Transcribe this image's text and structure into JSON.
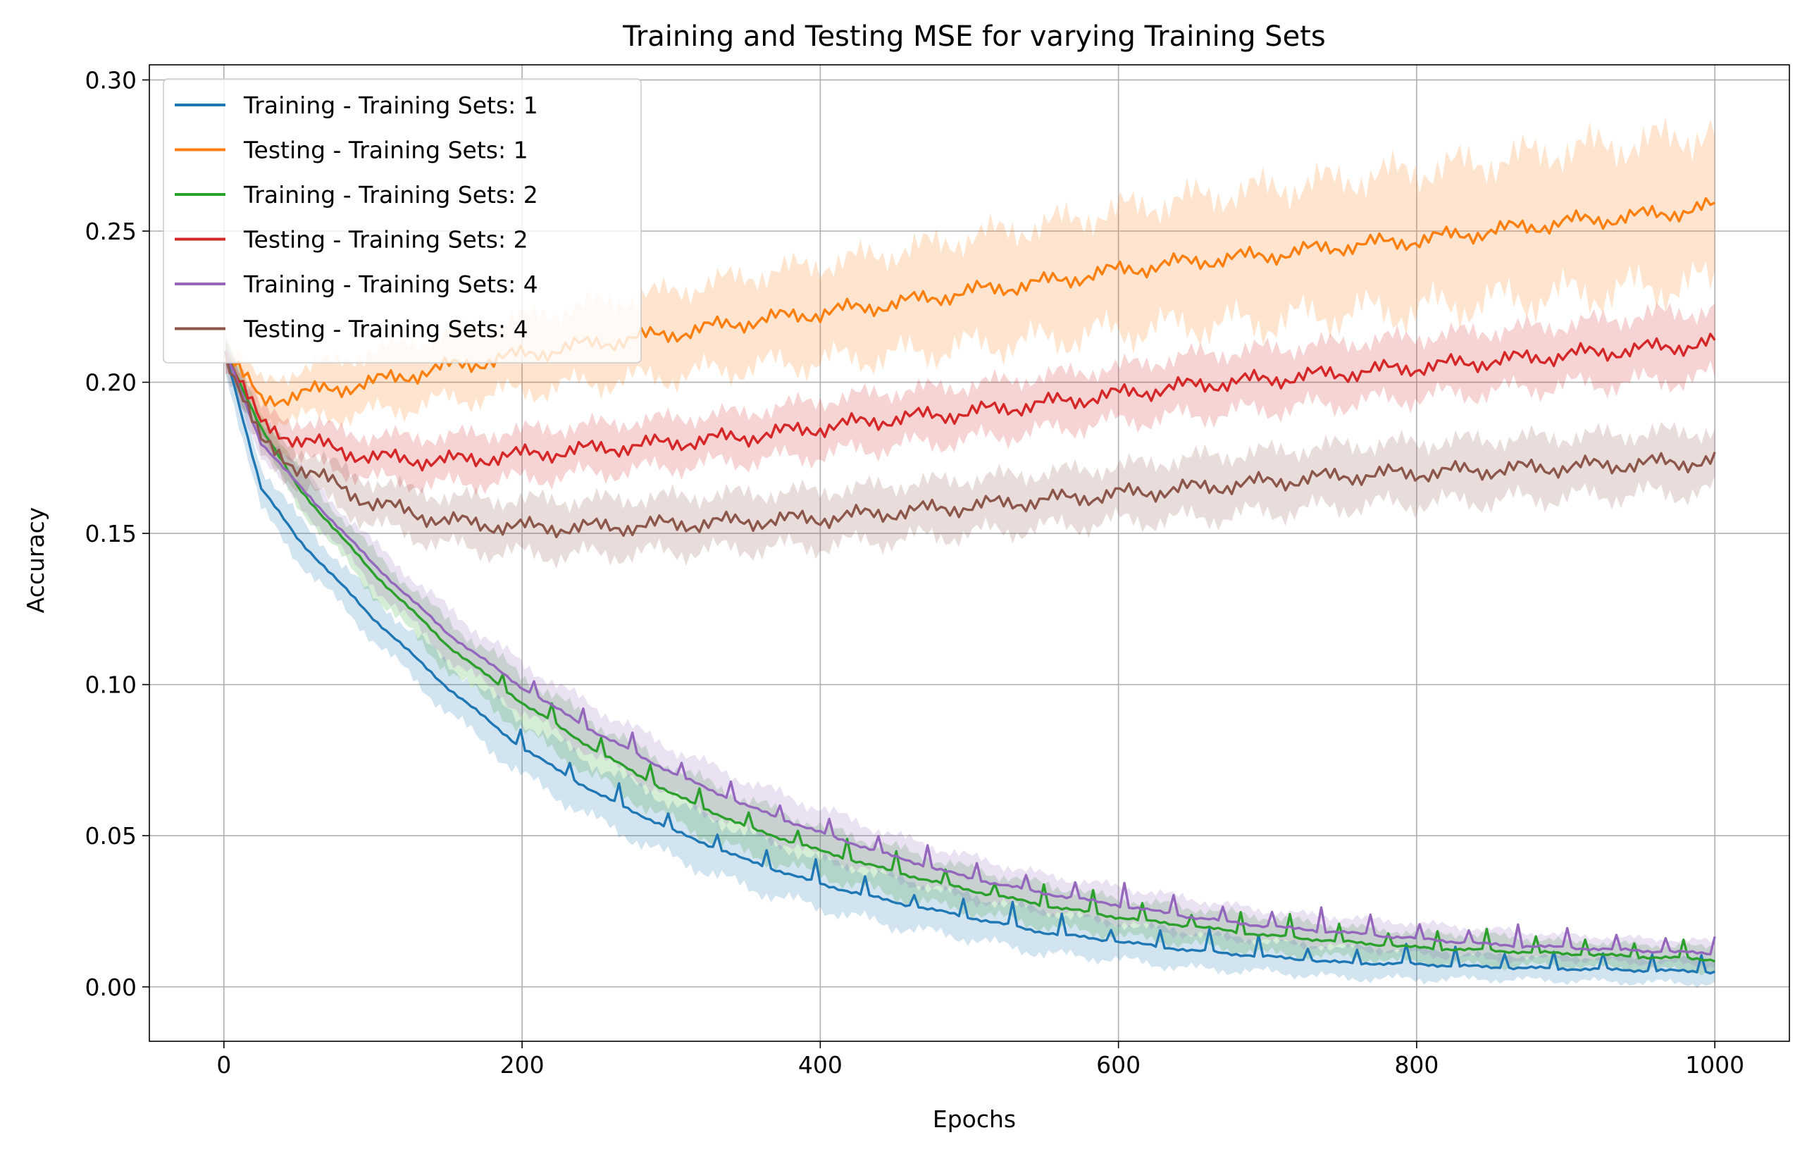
{
  "chart_data": {
    "type": "line",
    "title": "Training and Testing MSE for varying Training Sets",
    "xlabel": "Epochs",
    "ylabel": "Accuracy",
    "xlim": [
      -50,
      1050
    ],
    "ylim": [
      -0.018,
      0.305
    ],
    "xticks": [
      0,
      200,
      400,
      600,
      800,
      1000
    ],
    "xtick_labels": [
      "0",
      "200",
      "400",
      "600",
      "800",
      "1000"
    ],
    "yticks": [
      0.0,
      0.05,
      0.1,
      0.15,
      0.2,
      0.25,
      0.3
    ],
    "ytick_labels": [
      "0.00",
      "0.05",
      "0.10",
      "0.15",
      "0.20",
      "0.25",
      "0.30"
    ],
    "grid": true,
    "legend_position": "upper-left",
    "x": [
      1,
      25,
      50,
      100,
      150,
      200,
      250,
      300,
      350,
      400,
      450,
      500,
      550,
      600,
      650,
      700,
      750,
      800,
      850,
      900,
      950,
      1000
    ],
    "series": [
      {
        "name": "Training - Training Sets: 1",
        "color": "#1f77b4",
        "values": [
          0.21,
          0.165,
          0.148,
          0.122,
          0.099,
          0.079,
          0.064,
          0.052,
          0.042,
          0.034,
          0.028,
          0.023,
          0.018,
          0.015,
          0.012,
          0.01,
          0.008,
          0.0075,
          0.0065,
          0.006,
          0.0055,
          0.005
        ],
        "band": [
          0.006,
          0.007,
          0.007,
          0.007,
          0.008,
          0.009,
          0.009,
          0.009,
          0.009,
          0.008,
          0.008,
          0.007,
          0.007,
          0.006,
          0.006,
          0.005,
          0.005,
          0.005,
          0.004,
          0.004,
          0.004,
          0.004
        ]
      },
      {
        "name": "Testing - Training Sets: 1",
        "color": "#ff7f0e",
        "values": [
          0.21,
          0.194,
          0.196,
          0.2,
          0.205,
          0.209,
          0.213,
          0.216,
          0.22,
          0.223,
          0.226,
          0.23,
          0.233,
          0.237,
          0.24,
          0.242,
          0.245,
          0.247,
          0.25,
          0.253,
          0.255,
          0.258
        ],
        "band": [
          0.004,
          0.006,
          0.008,
          0.01,
          0.011,
          0.012,
          0.013,
          0.014,
          0.015,
          0.016,
          0.017,
          0.018,
          0.019,
          0.02,
          0.021,
          0.022,
          0.022,
          0.023,
          0.023,
          0.024,
          0.024,
          0.025
        ]
      },
      {
        "name": "Training - Training Sets: 2",
        "color": "#2ca02c",
        "values": [
          0.21,
          0.185,
          0.165,
          0.137,
          0.113,
          0.094,
          0.078,
          0.064,
          0.053,
          0.045,
          0.038,
          0.032,
          0.027,
          0.023,
          0.02,
          0.017,
          0.015,
          0.013,
          0.012,
          0.011,
          0.01,
          0.009
        ],
        "band": [
          0.004,
          0.005,
          0.006,
          0.007,
          0.008,
          0.009,
          0.009,
          0.009,
          0.009,
          0.008,
          0.008,
          0.007,
          0.007,
          0.006,
          0.006,
          0.006,
          0.005,
          0.005,
          0.005,
          0.004,
          0.004,
          0.004
        ]
      },
      {
        "name": "Testing - Training Sets: 2",
        "color": "#d62728",
        "values": [
          0.21,
          0.186,
          0.181,
          0.175,
          0.174,
          0.176,
          0.178,
          0.18,
          0.182,
          0.185,
          0.188,
          0.19,
          0.193,
          0.196,
          0.199,
          0.201,
          0.203,
          0.205,
          0.207,
          0.209,
          0.211,
          0.213
        ],
        "band": [
          0.004,
          0.005,
          0.006,
          0.007,
          0.008,
          0.008,
          0.008,
          0.008,
          0.008,
          0.009,
          0.009,
          0.009,
          0.009,
          0.009,
          0.01,
          0.01,
          0.01,
          0.01,
          0.01,
          0.01,
          0.011,
          0.011
        ]
      },
      {
        "name": "Training - Training Sets: 4",
        "color": "#9467bd",
        "values": [
          0.21,
          0.18,
          0.166,
          0.14,
          0.117,
          0.099,
          0.084,
          0.071,
          0.06,
          0.051,
          0.043,
          0.036,
          0.031,
          0.027,
          0.023,
          0.02,
          0.018,
          0.016,
          0.014,
          0.013,
          0.012,
          0.011
        ],
        "band": [
          0.004,
          0.005,
          0.006,
          0.007,
          0.008,
          0.008,
          0.008,
          0.008,
          0.008,
          0.008,
          0.007,
          0.007,
          0.006,
          0.006,
          0.006,
          0.005,
          0.005,
          0.005,
          0.005,
          0.004,
          0.004,
          0.004
        ]
      },
      {
        "name": "Testing - Training Sets: 4",
        "color": "#8c564b",
        "values": [
          0.21,
          0.18,
          0.172,
          0.16,
          0.154,
          0.152,
          0.152,
          0.153,
          0.154,
          0.155,
          0.157,
          0.159,
          0.161,
          0.163,
          0.165,
          0.167,
          0.169,
          0.17,
          0.171,
          0.172,
          0.173,
          0.174
        ],
        "band": [
          0.004,
          0.005,
          0.006,
          0.007,
          0.008,
          0.009,
          0.009,
          0.009,
          0.009,
          0.009,
          0.009,
          0.009,
          0.009,
          0.009,
          0.01,
          0.01,
          0.01,
          0.01,
          0.01,
          0.01,
          0.01,
          0.01
        ]
      }
    ]
  }
}
